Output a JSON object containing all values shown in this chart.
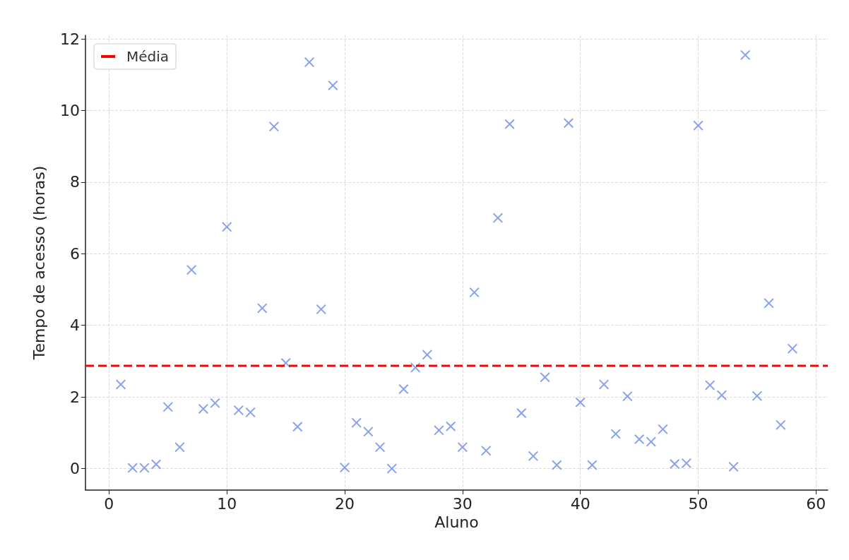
{
  "chart_data": {
    "type": "scatter",
    "xlabel": "Aluno",
    "ylabel": "Tempo de acesso (horas)",
    "x": [
      1,
      2,
      3,
      4,
      5,
      6,
      7,
      8,
      9,
      10,
      11,
      12,
      13,
      14,
      15,
      16,
      17,
      18,
      19,
      20,
      21,
      22,
      23,
      24,
      25,
      26,
      27,
      28,
      29,
      30,
      31,
      32,
      33,
      34,
      35,
      36,
      37,
      38,
      39,
      40,
      41,
      42,
      43,
      44,
      45,
      46,
      47,
      48,
      49,
      50,
      51,
      52,
      53,
      54,
      55,
      56,
      57,
      58
    ],
    "series": [
      {
        "color": "#6b8be8",
        "values": [
          2.35,
          0.02,
          0.02,
          0.12,
          1.72,
          0.6,
          5.55,
          1.67,
          1.83,
          6.75,
          1.63,
          1.57,
          4.48,
          9.55,
          2.95,
          1.17,
          11.35,
          4.45,
          10.7,
          0.03,
          1.28,
          1.03,
          0.6,
          0.0,
          2.22,
          2.82,
          3.18,
          1.07,
          1.18,
          0.6,
          4.92,
          0.5,
          7.0,
          9.62,
          1.55,
          0.35,
          2.55,
          0.1,
          9.65,
          1.85,
          0.1,
          2.35,
          0.97,
          2.02,
          0.82,
          0.75,
          1.1,
          0.13,
          0.15,
          9.58,
          2.33,
          2.05,
          0.05,
          11.55,
          2.03,
          4.62,
          1.22,
          3.35
        ]
      }
    ],
    "marker": "cross",
    "ref_lines": [
      {
        "axis": "y",
        "value": 2.87,
        "label": "Média",
        "color": "#ff0000",
        "line_style": "dashed"
      }
    ],
    "xlim": [
      -2,
      61
    ],
    "xticks": [
      0,
      10,
      20,
      30,
      40,
      50,
      60
    ],
    "ylim": [
      -0.6,
      12.1
    ],
    "yticks": [
      0,
      2,
      4,
      6,
      8,
      10,
      12
    ],
    "grid": true,
    "legend": "top left"
  }
}
